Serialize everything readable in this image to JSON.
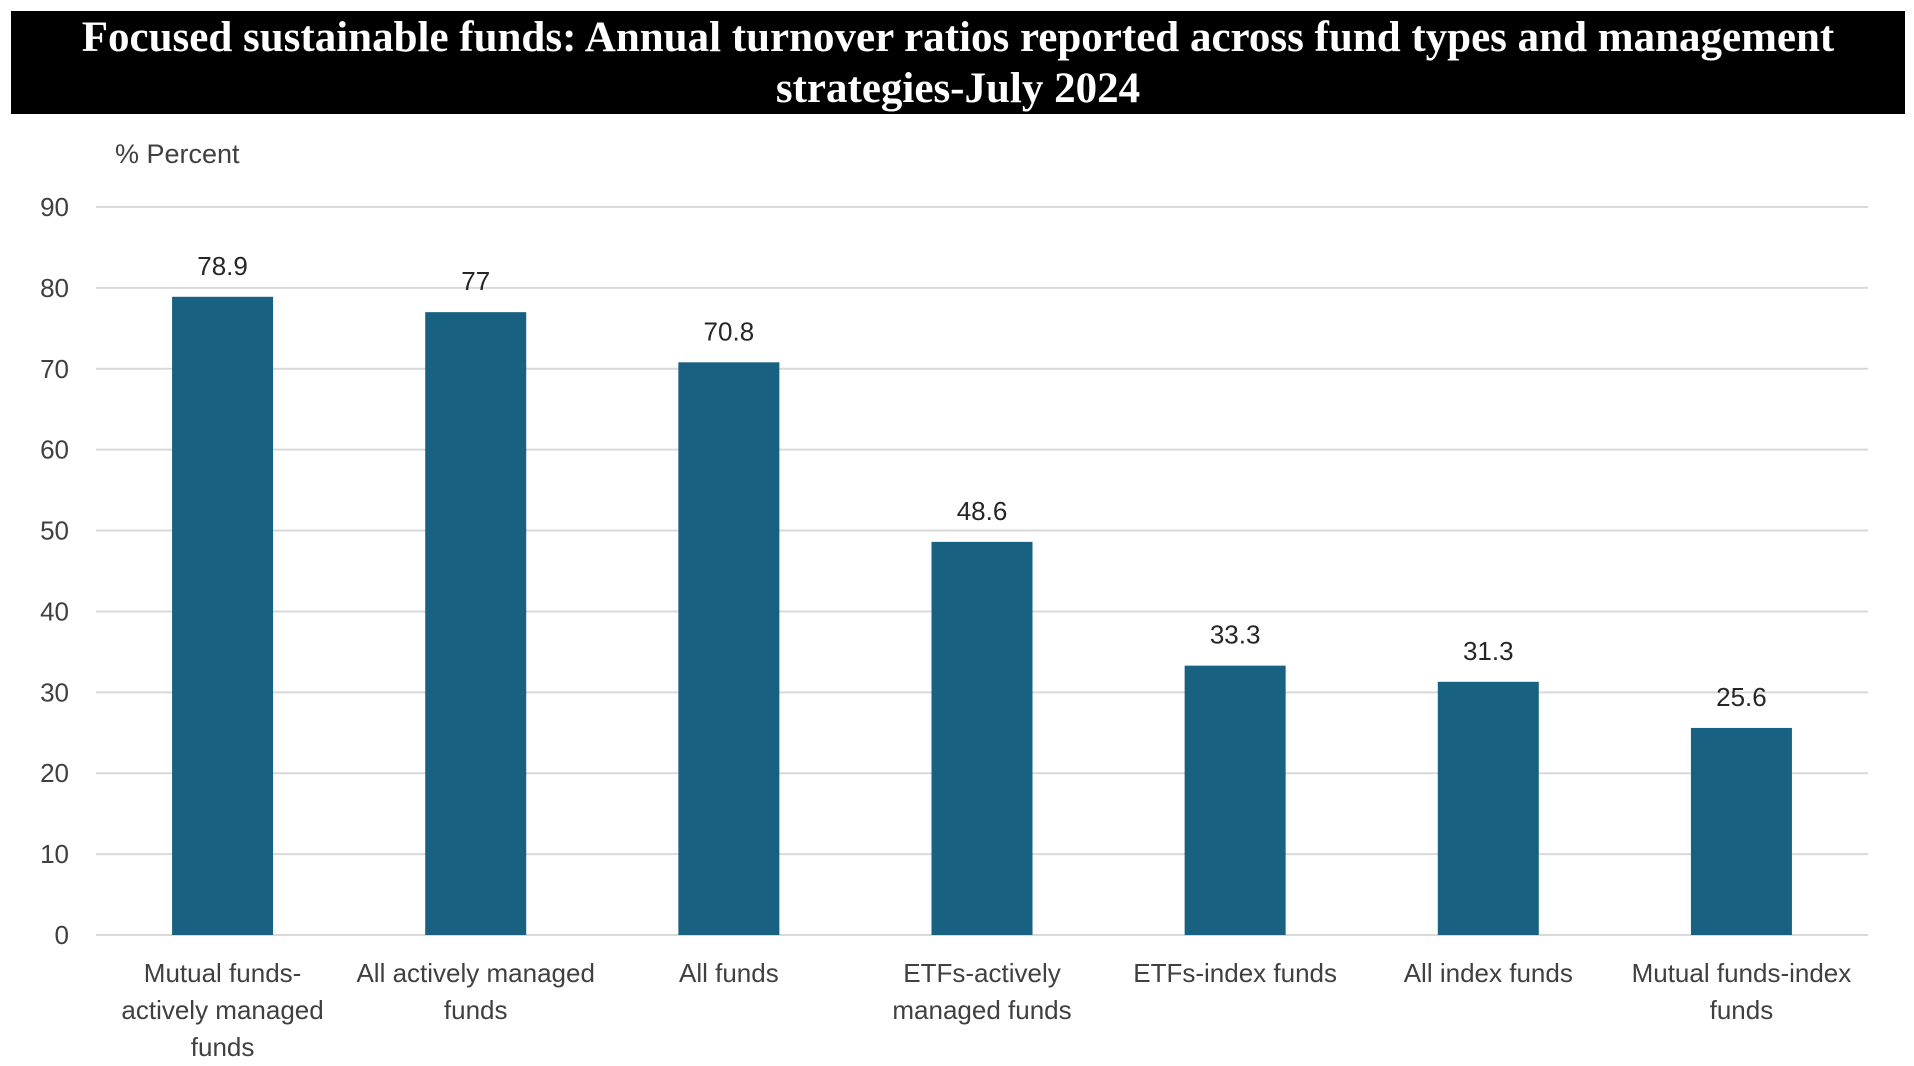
{
  "chart_data": {
    "type": "bar",
    "title": "Focused sustainable funds:  Annual turnover ratios reported across fund types and management strategies-July 2024",
    "title_lines": [
      "Focused sustainable funds:  Annual turnover ratios reported across fund types and management",
      "strategies-July 2024"
    ],
    "ylabel": "% Percent",
    "xlabel": "",
    "ylim": [
      0,
      90
    ],
    "yticks": [
      0,
      10,
      20,
      30,
      40,
      50,
      60,
      70,
      80,
      90
    ],
    "grid": true,
    "legend": "none",
    "categories": [
      "Mutual funds-actively managed funds",
      "All actively managed funds",
      "All funds",
      "ETFs-actively managed funds",
      "ETFs-index funds",
      "All index funds",
      "Mutual funds-index funds"
    ],
    "category_lines": [
      [
        "Mutual funds-",
        "actively managed",
        "funds"
      ],
      [
        "All actively managed",
        "funds"
      ],
      [
        "All funds"
      ],
      [
        "ETFs-actively",
        "managed funds"
      ],
      [
        "ETFs-index funds"
      ],
      [
        "All index funds"
      ],
      [
        "Mutual funds-index",
        "funds"
      ]
    ],
    "values": [
      78.9,
      77,
      70.8,
      48.6,
      33.3,
      31.3,
      25.6
    ],
    "value_labels": [
      "78.9",
      "77",
      "70.8",
      "48.6",
      "33.3",
      "31.3",
      "25.6"
    ],
    "bar_color": "#186180",
    "grid_color": "#d9d9d9",
    "title_background": "#000000",
    "title_color": "#ffffff"
  }
}
